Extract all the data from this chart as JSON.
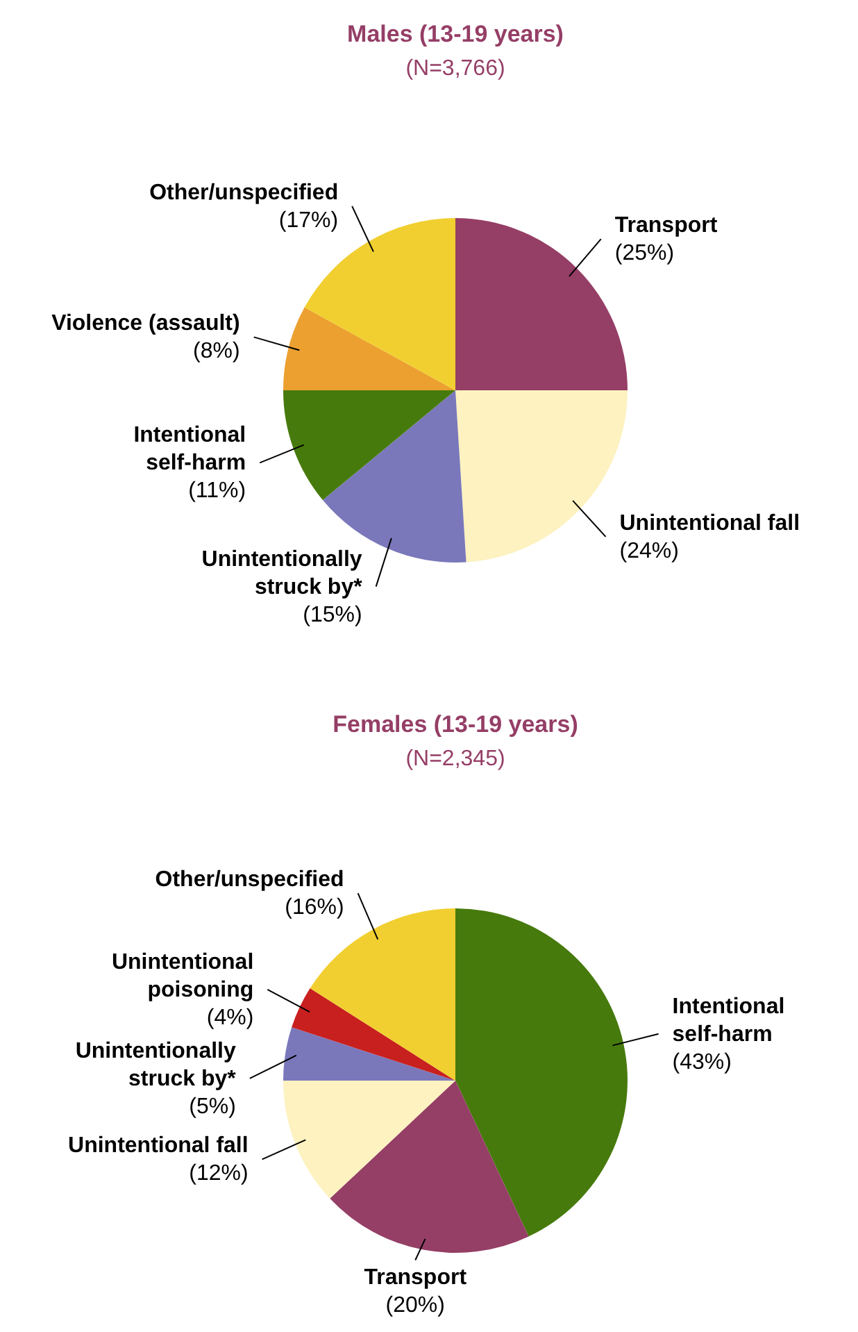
{
  "chart_data": [
    {
      "type": "pie",
      "title": "Males (13-19 years)",
      "subtitle": "(N=3,766)",
      "categories": [
        "Transport",
        "Unintentional fall",
        "Unintentionally struck by*",
        "Intentional self-harm",
        "Violence (assault)",
        "Other/unspecified"
      ],
      "values": [
        25,
        24,
        15,
        11,
        8,
        17
      ],
      "colors": [
        "#953e66",
        "#fdf2c0",
        "#7a78bb",
        "#467a0c",
        "#eca02f",
        "#f1cf30"
      ],
      "value_labels": [
        "(25%)",
        "(24%)",
        "(15%)",
        "(11%)",
        "(8%)",
        "(17%)"
      ]
    },
    {
      "type": "pie",
      "title": "Females (13-19 years)",
      "subtitle": "(N=2,345)",
      "categories": [
        "Intentional self-harm",
        "Transport",
        "Unintentional fall",
        "Unintentionally struck by*",
        "Unintentional poisoning",
        "Other/unspecified"
      ],
      "values": [
        43,
        20,
        12,
        5,
        4,
        16
      ],
      "colors": [
        "#467a0c",
        "#953e66",
        "#fdf2c0",
        "#7a78bb",
        "#c8201f",
        "#f1cf30"
      ],
      "value_labels": [
        "(43%)",
        "(20%)",
        "(12%)",
        "(5%)",
        "(4%)",
        "(16%)"
      ]
    }
  ]
}
